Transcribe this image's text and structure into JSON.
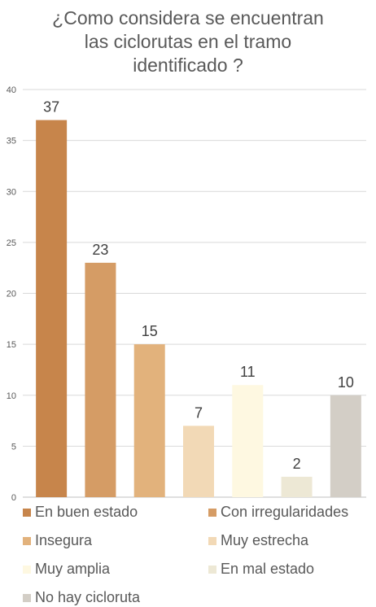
{
  "chart_data": {
    "type": "bar",
    "title_lines": [
      "¿Como considera se encuentran",
      "las ciclorutas en el tramo",
      "identificado ?"
    ],
    "categories": [
      "En buen estado",
      "Con irregularidades",
      "Insegura",
      "Muy estrecha",
      "Muy amplia",
      "En mal estado",
      "No hay cicloruta"
    ],
    "values": [
      37,
      23,
      15,
      7,
      11,
      2,
      10
    ],
    "colors": [
      "#C7854B",
      "#D59C65",
      "#E2B27C",
      "#F2D9B6",
      "#FEF8E1",
      "#EDE8D5",
      "#D3CEC6"
    ],
    "ylim": [
      0,
      40
    ],
    "yticks": [
      0,
      5,
      10,
      15,
      20,
      25,
      30,
      35,
      40
    ],
    "grid": true,
    "legend_position": "bottom"
  }
}
